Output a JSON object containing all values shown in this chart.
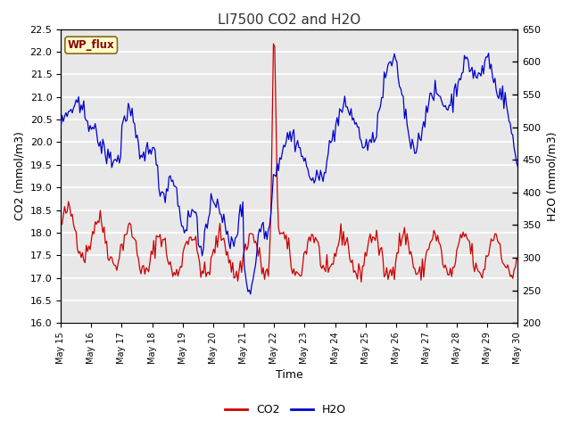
{
  "title": "LI7500 CO2 and H2O",
  "xlabel": "Time",
  "ylabel_left": "CO2 (mmol/m3)",
  "ylabel_right": "H2O (mmol/m3)",
  "ylim_left": [
    16.0,
    22.5
  ],
  "ylim_right": [
    200,
    650
  ],
  "yticks_left": [
    16.0,
    16.5,
    17.0,
    17.5,
    18.0,
    18.5,
    19.0,
    19.5,
    20.0,
    20.5,
    21.0,
    21.5,
    22.0,
    22.5
  ],
  "yticks_right": [
    200,
    250,
    300,
    350,
    400,
    450,
    500,
    550,
    600,
    650
  ],
  "xtick_labels": [
    "May 15",
    "May 16",
    "May 17",
    "May 18",
    "May 19",
    "May 20",
    "May 21",
    "May 22",
    "May 23",
    "May 24",
    "May 25",
    "May 26",
    "May 27",
    "May 28",
    "May 29",
    "May 30"
  ],
  "co2_color": "#cc0000",
  "h2o_color": "#0000cc",
  "plot_bg_color": "#e8e8e8",
  "fig_bg_color": "#ffffff",
  "grid_color": "#ffffff",
  "annotation_text": "WP_flux",
  "annotation_color": "#8b0000",
  "annotation_bg": "#ffffcc",
  "annotation_edge": "#8b6914"
}
